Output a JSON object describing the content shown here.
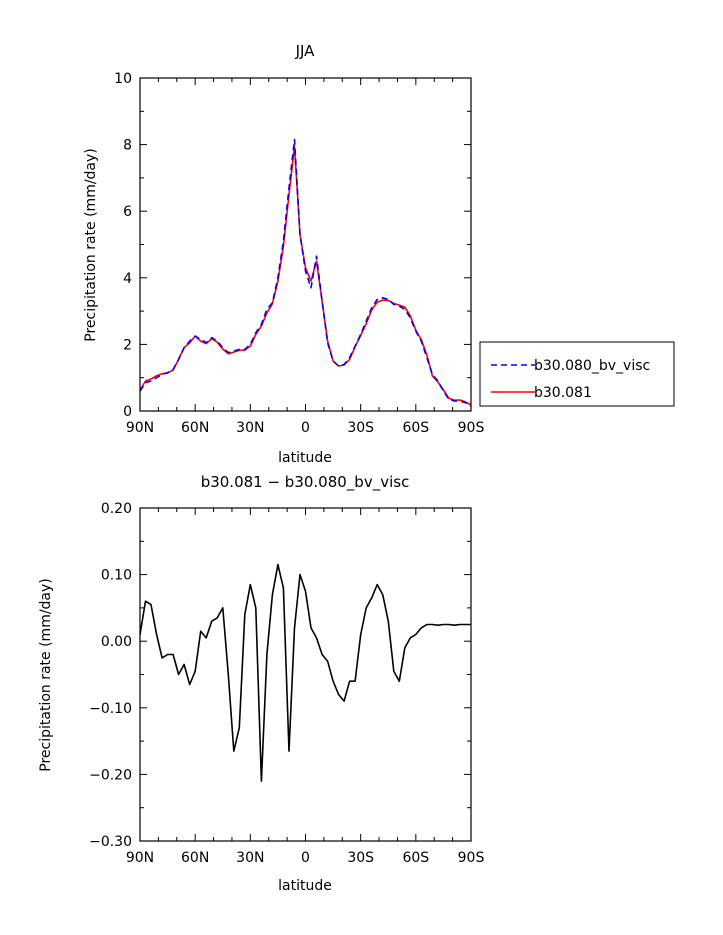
{
  "chart_data": [
    {
      "type": "line",
      "title": "JJA",
      "xlabel": "latitude",
      "ylabel": "Precipitation rate (mm/day)",
      "xlim": [
        90,
        -90
      ],
      "ylim": [
        0,
        10
      ],
      "x_tick_values": [
        90,
        60,
        30,
        0,
        -30,
        -60,
        -90
      ],
      "x_tick_labels": [
        "90N",
        "60N",
        "30N",
        "0",
        "30S",
        "60S",
        "90S"
      ],
      "y_tick_values": [
        0,
        2,
        4,
        6,
        8,
        10
      ],
      "y_tick_labels": [
        "0",
        "2",
        "4",
        "6",
        "8",
        "10"
      ],
      "grid": false,
      "legend": "right",
      "series": [
        {
          "name": "b30.080_bv_visc",
          "color": "#0000ff",
          "dash": "dashed",
          "x": [
            90,
            87,
            84,
            81,
            78,
            75,
            72,
            69,
            66,
            63,
            60,
            57,
            54,
            51,
            48,
            45,
            42,
            39,
            36,
            33,
            30,
            27,
            24,
            21,
            18,
            15,
            12,
            9,
            6,
            3,
            0,
            -3,
            -6,
            -9,
            -12,
            -15,
            -18,
            -21,
            -24,
            -27,
            -30,
            -33,
            -36,
            -39,
            -42,
            -45,
            -48,
            -51,
            -54,
            -57,
            -60,
            -63,
            -66,
            -69,
            -72,
            -75,
            -78,
            -81,
            -84,
            -87,
            -90
          ],
          "values": [
            0.6,
            0.85,
            0.9,
            1.0,
            1.1,
            1.15,
            1.25,
            1.55,
            1.9,
            2.1,
            2.25,
            2.15,
            2.05,
            2.2,
            2.1,
            1.9,
            1.75,
            1.8,
            1.85,
            1.85,
            2.0,
            2.35,
            2.6,
            3.05,
            3.25,
            4.0,
            5.1,
            6.7,
            8.15,
            5.3,
            4.2,
            3.7,
            4.65,
            3.3,
            2.05,
            1.5,
            1.35,
            1.4,
            1.6,
            1.95,
            2.3,
            2.7,
            3.1,
            3.35,
            3.4,
            3.35,
            3.2,
            3.15,
            3.05,
            2.8,
            2.4,
            2.1,
            1.6,
            1.1,
            0.9,
            0.6,
            0.35,
            0.3,
            0.3,
            0.25,
            0.15
          ]
        },
        {
          "name": "b30.081",
          "color": "#ff0000",
          "dash": "solid",
          "x": [
            90,
            87,
            84,
            81,
            78,
            75,
            72,
            69,
            66,
            63,
            60,
            57,
            54,
            51,
            48,
            45,
            42,
            39,
            36,
            33,
            30,
            27,
            24,
            21,
            18,
            15,
            12,
            9,
            6,
            3,
            0,
            -3,
            -6,
            -9,
            -12,
            -15,
            -18,
            -21,
            -24,
            -27,
            -30,
            -33,
            -36,
            -39,
            -42,
            -45,
            -48,
            -51,
            -54,
            -57,
            -60,
            -63,
            -66,
            -69,
            -72,
            -75,
            -78,
            -81,
            -84,
            -87,
            -90
          ],
          "values": [
            0.62,
            0.9,
            0.96,
            1.06,
            1.12,
            1.14,
            1.23,
            1.55,
            1.9,
            2.05,
            2.25,
            2.1,
            2.02,
            2.17,
            2.07,
            1.86,
            1.72,
            1.77,
            1.82,
            1.83,
            1.95,
            2.3,
            2.55,
            2.95,
            3.22,
            3.9,
            4.95,
            6.5,
            7.95,
            5.3,
            4.3,
            3.9,
            4.5,
            3.3,
            2.1,
            1.5,
            1.35,
            1.38,
            1.55,
            1.93,
            2.27,
            2.62,
            3.03,
            3.27,
            3.33,
            3.32,
            3.23,
            3.18,
            3.12,
            2.86,
            2.43,
            2.14,
            1.68,
            1.05,
            0.87,
            0.63,
            0.38,
            0.32,
            0.33,
            0.27,
            0.18
          ]
        }
      ]
    },
    {
      "type": "line",
      "title": "b30.081 − b30.080_bv_visc",
      "xlabel": "latitude",
      "ylabel": "Precipitation rate (mm/day)",
      "xlim": [
        90,
        -90
      ],
      "ylim": [
        -0.3,
        0.2
      ],
      "x_tick_values": [
        90,
        60,
        30,
        0,
        -30,
        -60,
        -90
      ],
      "x_tick_labels": [
        "90N",
        "60N",
        "30N",
        "0",
        "30S",
        "60S",
        "90S"
      ],
      "y_tick_values": [
        -0.3,
        -0.2,
        -0.1,
        0.0,
        0.1,
        0.2
      ],
      "y_tick_labels": [
        "−0.30",
        "−0.20",
        "−0.10",
        "0.00",
        "0.10",
        "0.20"
      ],
      "grid": false,
      "series": [
        {
          "color": "#000000",
          "x": [
            90,
            87,
            84,
            81,
            78,
            75,
            72,
            69,
            66,
            63,
            60,
            57,
            54,
            51,
            48,
            45,
            42,
            39,
            36,
            33,
            30,
            27,
            24,
            21,
            18,
            15,
            12,
            9,
            6,
            3,
            0,
            -3,
            -6,
            -9,
            -12,
            -15,
            -18,
            -21,
            -24,
            -27,
            -30,
            -33,
            -36,
            -39,
            -42,
            -45,
            -48,
            -51,
            -54,
            -57,
            -60,
            -63,
            -66,
            -69,
            -72,
            -75,
            -78,
            -81,
            -84,
            -87,
            -90
          ],
          "values": [
            0.01,
            0.06,
            0.055,
            0.01,
            -0.025,
            -0.02,
            -0.02,
            -0.05,
            -0.035,
            -0.065,
            -0.045,
            0.015,
            0.005,
            0.03,
            0.035,
            0.05,
            -0.05,
            -0.165,
            -0.13,
            0.04,
            0.085,
            0.05,
            -0.21,
            -0.02,
            0.07,
            0.115,
            0.08,
            -0.165,
            0.02,
            0.1,
            0.075,
            0.02,
            0.005,
            -0.02,
            -0.03,
            -0.06,
            -0.08,
            -0.09,
            -0.06,
            -0.06,
            0.01,
            0.05,
            0.065,
            0.085,
            0.07,
            0.03,
            -0.045,
            -0.06,
            -0.01,
            0.005,
            0.01,
            0.02,
            0.025,
            0.025,
            0.024,
            0.025,
            0.025,
            0.024,
            0.025,
            0.025,
            0.025
          ]
        }
      ]
    }
  ]
}
